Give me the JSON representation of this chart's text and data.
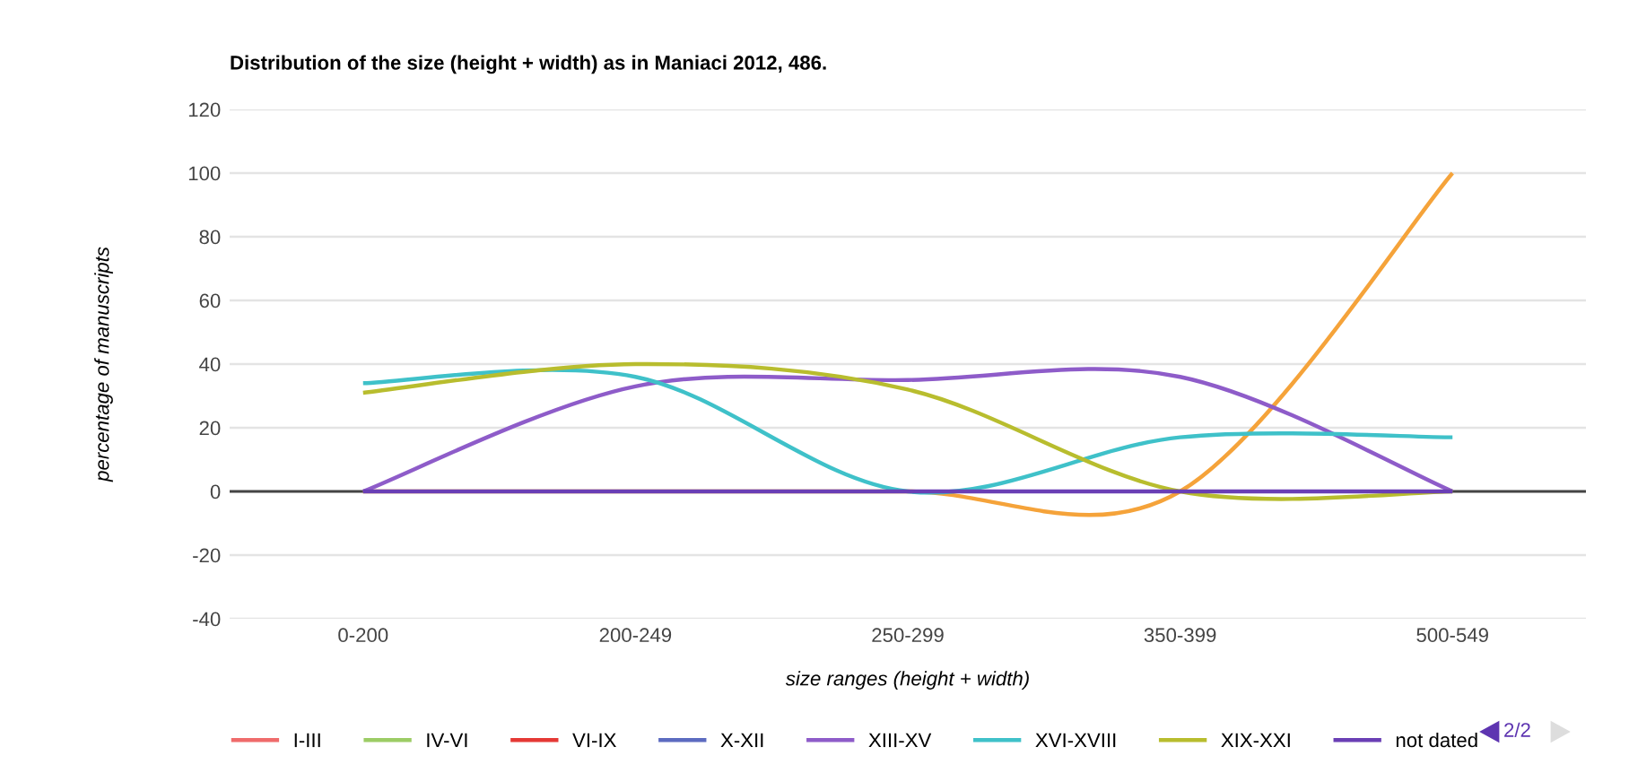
{
  "chart_data": {
    "type": "line",
    "title": "Distribution of the size (height + width) as in Maniaci 2012, 486.",
    "xlabel": "size ranges (height + width)",
    "ylabel": "percentage of manuscripts",
    "categories": [
      "0-200",
      "200-249",
      "250-299",
      "350-399",
      "500-549"
    ],
    "series": [
      {
        "color": "#f5a33a",
        "values": [
          0,
          0,
          0,
          0,
          100
        ]
      },
      {
        "name": "I-III",
        "color": "#ef6b6b",
        "values": [
          null,
          null,
          null,
          null,
          null
        ]
      },
      {
        "name": "IV-VI",
        "color": "#9ccc65",
        "values": [
          null,
          null,
          null,
          null,
          null
        ]
      },
      {
        "name": "VI-IX",
        "color": "#e53935",
        "values": [
          null,
          null,
          null,
          null,
          null
        ]
      },
      {
        "name": "X-XII",
        "color": "#5c6bc0",
        "values": [
          null,
          null,
          null,
          null,
          null
        ]
      },
      {
        "name": "XIII-XV",
        "color": "#8e5cc9",
        "values": [
          0,
          33,
          35,
          36,
          0
        ]
      },
      {
        "name": "XVI-XVIII",
        "color": "#3fc1c9",
        "values": [
          34,
          36,
          0,
          17,
          17
        ]
      },
      {
        "name": "XIX-XXI",
        "color": "#b8bd2e",
        "values": [
          31,
          40,
          32,
          0,
          0
        ]
      },
      {
        "name": "not dated",
        "color": "#6a3fb5",
        "values": [
          0,
          0,
          0,
          0,
          0
        ]
      }
    ],
    "ylim": [
      -40,
      120
    ],
    "yticks": [
      -40,
      -20,
      0,
      20,
      40,
      60,
      80,
      100,
      120
    ],
    "grid": "y",
    "ref_lines": [
      {
        "axis": "y",
        "value": 0,
        "color": "#444444"
      }
    ],
    "legend": "bottom",
    "annotations": [
      "2/2"
    ],
    "marker": "none",
    "line_style": "solid"
  }
}
